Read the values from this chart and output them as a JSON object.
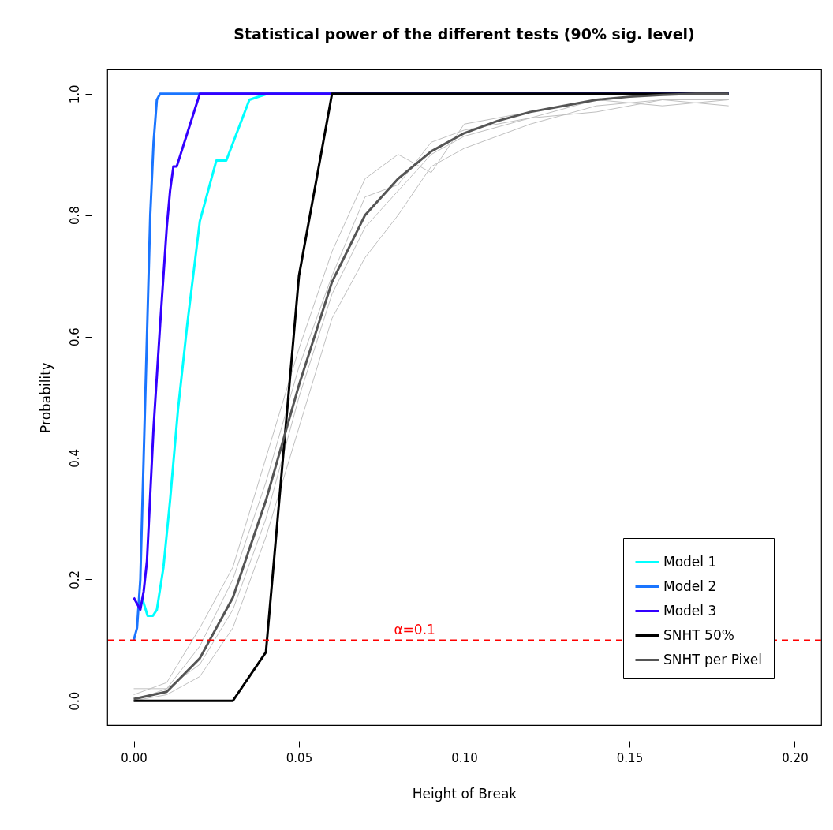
{
  "chart_data": {
    "type": "line",
    "title": "Statistical power of the different tests (90% sig. level)",
    "xlabel": "Height of Break",
    "ylabel": "Probability",
    "xlim": [
      -0.008,
      0.208
    ],
    "xticks": [
      {
        "value": 0,
        "label": "0.00"
      },
      {
        "value": 0.05,
        "label": "0.05"
      },
      {
        "value": 0.1,
        "label": "0.10"
      },
      {
        "value": 0.15,
        "label": "0.15"
      },
      {
        "value": 0.2,
        "label": "0.20"
      }
    ],
    "ylim": [
      -0.04,
      1.04
    ],
    "yticks": [
      {
        "value": 0,
        "label": "0.0"
      },
      {
        "value": 0.2,
        "label": "0.2"
      },
      {
        "value": 0.4,
        "label": "0.4"
      },
      {
        "value": 0.6,
        "label": "0.6"
      },
      {
        "value": 0.8,
        "label": "0.8"
      },
      {
        "value": 1,
        "label": "1.0"
      }
    ],
    "grid": false,
    "legend": "bottom right",
    "marker": "none",
    "line_style": "solid",
    "ref_lines": [
      {
        "axis": "y",
        "value": 0.1,
        "label": "α=0.1",
        "color": "#ff0000",
        "line_style": "dashed"
      }
    ],
    "series": [
      {
        "color": "#c0c0c0",
        "x": [
          0,
          0.01,
          0.02,
          0.03,
          0.04,
          0.05,
          0.06,
          0.07,
          0.08,
          0.09,
          0.1,
          0.12,
          0.14,
          0.16,
          0.18
        ],
        "values": [
          0.01,
          0.03,
          0.12,
          0.22,
          0.4,
          0.58,
          0.74,
          0.86,
          0.9,
          0.87,
          0.95,
          0.97,
          0.99,
          0.98,
          0.99
        ]
      },
      {
        "color": "#c0c0c0",
        "x": [
          0,
          0.01,
          0.02,
          0.03,
          0.04,
          0.05,
          0.06,
          0.07,
          0.08,
          0.09,
          0.1,
          0.12,
          0.14,
          0.16,
          0.18
        ],
        "values": [
          0,
          0.01,
          0.04,
          0.12,
          0.27,
          0.45,
          0.63,
          0.73,
          0.8,
          0.88,
          0.91,
          0.95,
          0.98,
          0.99,
          0.98
        ]
      },
      {
        "color": "#c0c0c0",
        "x": [
          0,
          0.01,
          0.02,
          0.03,
          0.04,
          0.05,
          0.06,
          0.07,
          0.08,
          0.09,
          0.1,
          0.12,
          0.14,
          0.16,
          0.18
        ],
        "values": [
          0.02,
          0.02,
          0.09,
          0.2,
          0.36,
          0.55,
          0.7,
          0.83,
          0.85,
          0.92,
          0.94,
          0.96,
          0.99,
          1.0,
          1.0
        ]
      },
      {
        "color": "#c0c0c0",
        "x": [
          0,
          0.01,
          0.02,
          0.03,
          0.04,
          0.05,
          0.06,
          0.07,
          0.08,
          0.09,
          0.1,
          0.12,
          0.14,
          0.16,
          0.18
        ],
        "values": [
          0,
          0.02,
          0.06,
          0.15,
          0.3,
          0.5,
          0.67,
          0.78,
          0.84,
          0.9,
          0.93,
          0.96,
          0.97,
          0.99,
          0.99
        ]
      },
      {
        "name": "Model 1",
        "color": "#00ffff",
        "x": [
          0.0025,
          0.0042,
          0.0058,
          0.007,
          0.009,
          0.011,
          0.0134,
          0.0162,
          0.02,
          0.025,
          0.028,
          0.035,
          0.0405,
          0.18
        ],
        "values": [
          0.17,
          0.14,
          0.14,
          0.15,
          0.22,
          0.33,
          0.48,
          0.62,
          0.79,
          0.89,
          0.89,
          0.99,
          1.0,
          1.0
        ]
      },
      {
        "name": "Model 2",
        "color": "#1a75ff",
        "x": [
          0,
          0.001,
          0.002,
          0.003,
          0.004,
          0.005,
          0.006,
          0.007,
          0.008,
          0.18
        ],
        "values": [
          0.1,
          0.12,
          0.2,
          0.4,
          0.6,
          0.8,
          0.92,
          0.99,
          1.0,
          1.0
        ]
      },
      {
        "name": "Model 3",
        "color": "#3300ff",
        "x": [
          0,
          0.002,
          0.003,
          0.004,
          0.006,
          0.008,
          0.01,
          0.011,
          0.012,
          0.013,
          0.02,
          0.18
        ],
        "values": [
          0.17,
          0.15,
          0.18,
          0.23,
          0.45,
          0.62,
          0.78,
          0.84,
          0.88,
          0.88,
          1.0,
          1.0
        ]
      },
      {
        "name": "SNHT 50%",
        "color": "#000000",
        "x": [
          0,
          0.03,
          0.04,
          0.05,
          0.06,
          0.18
        ],
        "values": [
          0,
          0,
          0.08,
          0.7,
          1.0,
          1.0
        ]
      },
      {
        "name": "SNHT per Pixel",
        "color": "#555555",
        "x": [
          0,
          0.01,
          0.02,
          0.03,
          0.04,
          0.05,
          0.06,
          0.07,
          0.08,
          0.09,
          0.1,
          0.11,
          0.12,
          0.13,
          0.14,
          0.15,
          0.16,
          0.17,
          0.18
        ],
        "values": [
          0.003,
          0.015,
          0.07,
          0.17,
          0.33,
          0.52,
          0.69,
          0.8,
          0.86,
          0.905,
          0.935,
          0.955,
          0.97,
          0.98,
          0.99,
          0.995,
          0.998,
          1.0,
          1.0
        ]
      }
    ]
  }
}
